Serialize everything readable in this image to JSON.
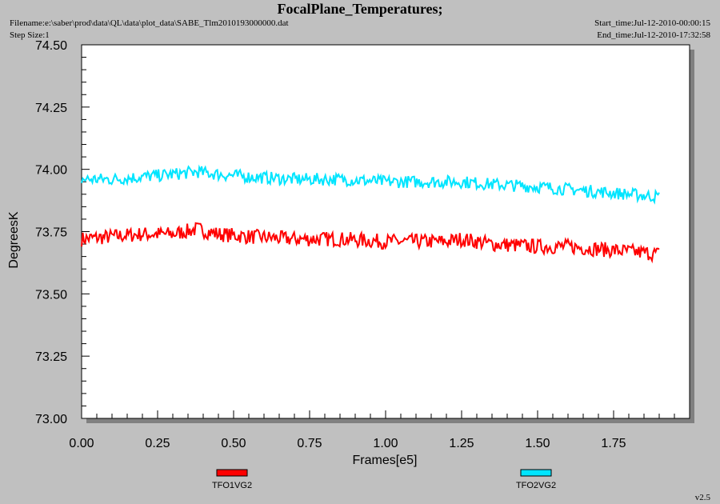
{
  "header": {
    "title": "FocalPlane_Temperatures;",
    "filename": "Filename:e:\\saber\\prod\\data\\QL\\data\\plot_data\\SABE_Tlm2010193000000.dat",
    "step_size": "Step Size:1",
    "start_time": "Start_time:Jul-12-2010-00:00:15",
    "end_time": "End_time:Jul-12-2010-17:32:58"
  },
  "footer": {
    "version": "v2.5"
  },
  "colors": {
    "background": "#c0c0c0",
    "plot_area": "#ffffff",
    "shadow": "#808080",
    "series1": "#ff0000",
    "series2": "#00e5ff"
  },
  "chart_data": {
    "type": "line",
    "xlabel": "Frames[e5]",
    "ylabel": "DegreesK",
    "xlim": [
      0,
      2.0
    ],
    "ylim": [
      73.0,
      74.5
    ],
    "xticks": [
      "0.00",
      "0.25",
      "0.50",
      "0.75",
      "1.00",
      "1.25",
      "1.50",
      "1.75"
    ],
    "yticks": [
      "73.00",
      "73.25",
      "73.50",
      "73.75",
      "74.00",
      "74.25",
      "74.50"
    ],
    "grid": false,
    "legend": "bottom",
    "series": [
      {
        "name": "TFO1VG2",
        "color": "#ff0000",
        "noise_band": 0.06,
        "x": [
          0.0,
          0.1,
          0.2,
          0.3,
          0.38,
          0.45,
          0.55,
          0.7,
          0.85,
          1.0,
          1.1,
          1.2,
          1.25,
          1.35,
          1.5,
          1.6,
          1.7,
          1.8,
          1.9
        ],
        "y": [
          73.72,
          73.73,
          73.74,
          73.74,
          73.76,
          73.74,
          73.73,
          73.72,
          73.72,
          73.71,
          73.71,
          73.71,
          73.72,
          73.7,
          73.69,
          73.69,
          73.68,
          73.67,
          73.66
        ]
      },
      {
        "name": "TFO2VG2",
        "color": "#00e5ff",
        "noise_band": 0.05,
        "x": [
          0.0,
          0.1,
          0.2,
          0.3,
          0.38,
          0.45,
          0.55,
          0.7,
          0.85,
          1.0,
          1.1,
          1.2,
          1.25,
          1.35,
          1.5,
          1.6,
          1.7,
          1.8,
          1.9
        ],
        "y": [
          73.96,
          73.96,
          73.97,
          73.98,
          73.99,
          73.98,
          73.97,
          73.96,
          73.96,
          73.95,
          73.95,
          73.95,
          73.95,
          73.94,
          73.93,
          73.92,
          73.91,
          73.9,
          73.89
        ]
      }
    ]
  }
}
